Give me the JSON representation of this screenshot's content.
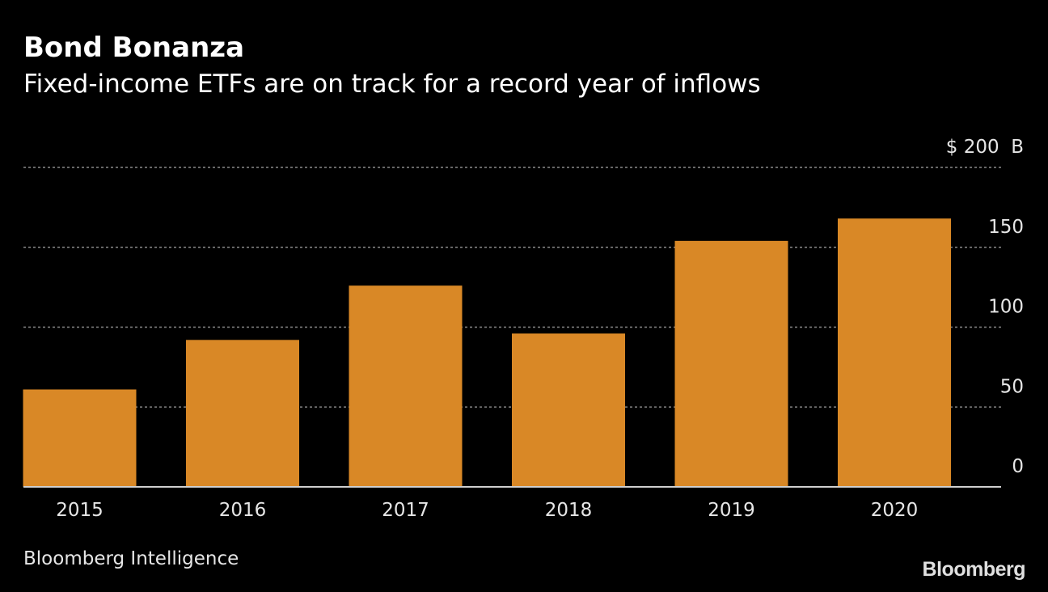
{
  "header": {
    "title": "Bond Bonanza",
    "subtitle": "Fixed-income ETFs are on track for a record year of inflows"
  },
  "footer": {
    "source": "Bloomberg Intelligence",
    "brand": "Bloomberg"
  },
  "colors": {
    "background": "#000000",
    "bar": "#d98826",
    "grid": "#8a8a8a",
    "axis": "#cfcfcf",
    "text": "#e6e6e6"
  },
  "chart_data": {
    "type": "bar",
    "title": "Bond Bonanza",
    "subtitle": "Fixed-income ETFs are on track for a record year of inflows",
    "categories": [
      "2015",
      "2016",
      "2017",
      "2018",
      "2019",
      "2020"
    ],
    "values": [
      61,
      92,
      126,
      96,
      154,
      168
    ],
    "xlabel": "",
    "ylabel": "",
    "ylim": [
      0,
      200
    ],
    "yticks": [
      0,
      50,
      100,
      150,
      200
    ],
    "ytick_labels": [
      "0",
      "50",
      "100",
      "150",
      "$ 200  B"
    ],
    "grid": true,
    "y_axis_side": "right"
  }
}
